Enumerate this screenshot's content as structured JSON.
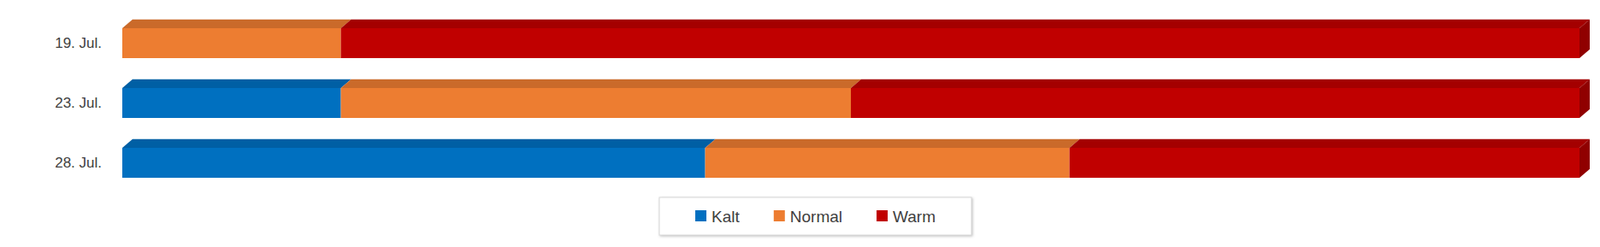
{
  "chart_data": {
    "type": "bar",
    "orientation": "horizontal",
    "stacked": true,
    "categories": [
      "19. Jul.",
      "23. Jul.",
      "28. Jul."
    ],
    "series": [
      {
        "name": "Kalt",
        "color": "#0070c0",
        "values": [
          0,
          15,
          40
        ]
      },
      {
        "name": "Normal",
        "color": "#ed7d31",
        "values": [
          15,
          35,
          25
        ]
      },
      {
        "name": "Warm",
        "color": "#c00000",
        "values": [
          85,
          50,
          35
        ]
      }
    ],
    "xlim": [
      0,
      100
    ],
    "tick_labels": false,
    "legend": "bottom"
  }
}
